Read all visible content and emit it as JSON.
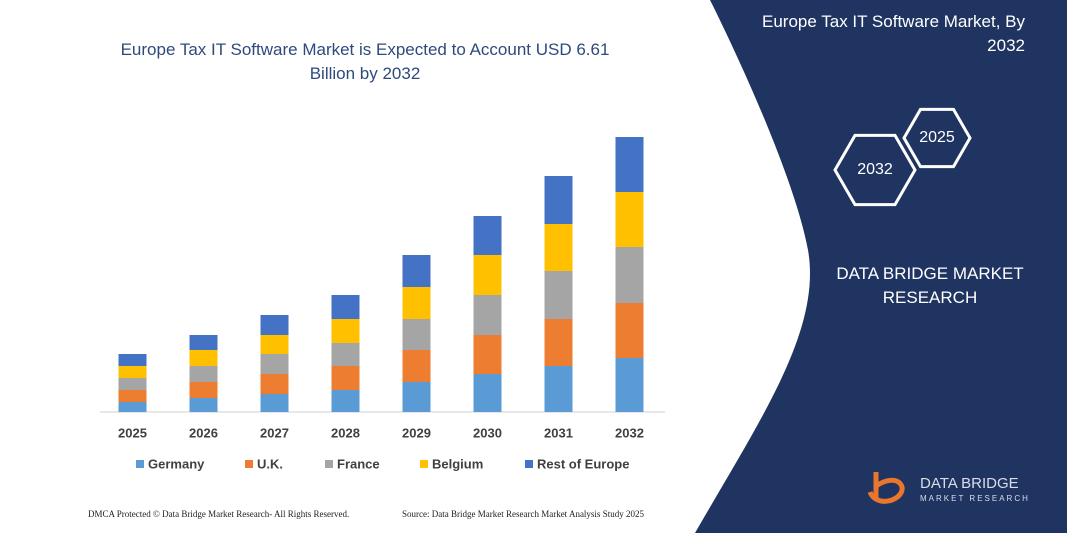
{
  "chart_data": {
    "type": "stacked_bar",
    "title": "Europe Tax IT Software Market is Expected to Account USD 6.61 Billion by 2032",
    "categories": [
      "2025",
      "2026",
      "2027",
      "2028",
      "2029",
      "2030",
      "2031",
      "2032"
    ],
    "series": [
      {
        "name": "Germany",
        "color": "#5b9bd5",
        "values": [
          10,
          14,
          18,
          22,
          30,
          38,
          46,
          54
        ]
      },
      {
        "name": "U.K.",
        "color": "#ed7d31",
        "values": [
          12,
          16,
          20,
          24,
          32,
          39,
          47,
          55
        ]
      },
      {
        "name": "France",
        "color": "#a5a5a5",
        "values": [
          12,
          16,
          20,
          23,
          31,
          40,
          48,
          56
        ]
      },
      {
        "name": "Belgium",
        "color": "#ffc000",
        "values": [
          12,
          16,
          19,
          24,
          32,
          40,
          47,
          55
        ]
      },
      {
        "name": "Rest of Europe",
        "color": "#4472c4",
        "values": [
          12,
          15,
          20,
          24,
          32,
          39,
          48,
          55
        ]
      }
    ],
    "ylim": [
      0,
      280
    ]
  },
  "panel": {
    "title": "Europe Tax IT Software Market, By 2032",
    "hex_front": "2032",
    "hex_back": "2025",
    "brand": "DATA BRIDGE MARKET RESEARCH"
  },
  "footer": {
    "dmca": "DMCA Protected © Data Bridge Market Research- All Rights Reserved.",
    "source": "Source: Data Bridge Market Research Market Analysis Study 2025"
  },
  "logo": {
    "name": "DATA BRIDGE",
    "sub": "MARKET RESEARCH"
  }
}
